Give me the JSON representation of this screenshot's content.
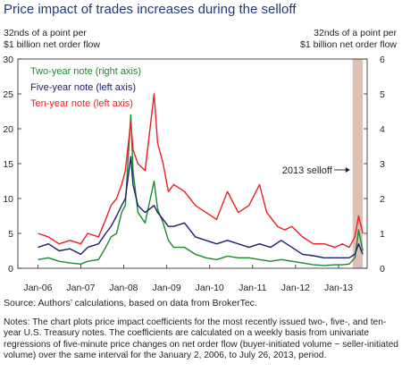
{
  "header": {
    "title": "Price impact of trades increases during the selloff",
    "left_unit": [
      "32nds of a point per",
      "$1 billion net order flow"
    ],
    "right_unit": [
      "32nds of a point per",
      "$1 billion net order flow"
    ]
  },
  "footer": {
    "source": "Source: Authors’ calculations, based on data from BrokerTec.",
    "notes": "Notes: The chart plots price impact coefficients for the most recently issued two-, five-, and ten-year U.S. Treasury notes. The coefficients are calculated on a weekly basis from univariate regressions of five-minute price changes on net order flow (buyer-initiated volume − seller-initiated volume) over the same interval for the January 2, 2006, to July 26, 2013, period."
  },
  "colors": {
    "two_year": "#1a8a2e",
    "five_year": "#1b1f6e",
    "ten_year": "#ee1c24",
    "shade": "#ddbfb4"
  },
  "chart_data": {
    "type": "line",
    "x_tick_labels": [
      "Jan-06",
      "Jan-07",
      "Jan-08",
      "Jan-09",
      "Jan-10",
      "Jan-11",
      "Jan-12",
      "Jan-13"
    ],
    "xlim": [
      "2005-07-15",
      "2013-09-01"
    ],
    "left_axis": {
      "ticks": [
        0,
        5,
        10,
        15,
        20,
        25,
        30
      ],
      "ylim": [
        0,
        30
      ]
    },
    "right_axis": {
      "ticks": [
        0,
        1,
        2,
        3,
        4,
        5,
        6
      ],
      "ylim": [
        0,
        6
      ]
    },
    "shaded_region": {
      "start": "2013-05-01",
      "end": "2013-07-26",
      "label": "2013 selloff"
    },
    "series": [
      {
        "name": "Two-year note (right axis)",
        "axis": "right",
        "color": "#1a8a2e",
        "points": [
          [
            "2006-01-02",
            0.25
          ],
          [
            "2006-04-01",
            0.3
          ],
          [
            "2006-07-01",
            0.2
          ],
          [
            "2006-10-01",
            0.15
          ],
          [
            "2007-01-01",
            0.12
          ],
          [
            "2007-03-01",
            0.2
          ],
          [
            "2007-06-01",
            0.25
          ],
          [
            "2007-08-01",
            0.6
          ],
          [
            "2007-09-15",
            0.9
          ],
          [
            "2007-11-01",
            1.0
          ],
          [
            "2007-12-15",
            1.6
          ],
          [
            "2008-01-15",
            1.8
          ],
          [
            "2008-03-01",
            4.4
          ],
          [
            "2008-03-20",
            2.8
          ],
          [
            "2008-05-01",
            1.6
          ],
          [
            "2008-07-01",
            1.3
          ],
          [
            "2008-09-15",
            2.5
          ],
          [
            "2008-10-15",
            1.7
          ],
          [
            "2008-12-01",
            1.3
          ],
          [
            "2009-01-15",
            0.8
          ],
          [
            "2009-03-01",
            0.6
          ],
          [
            "2009-06-01",
            0.6
          ],
          [
            "2009-09-01",
            0.4
          ],
          [
            "2009-12-01",
            0.3
          ],
          [
            "2010-03-01",
            0.25
          ],
          [
            "2010-06-01",
            0.35
          ],
          [
            "2010-09-01",
            0.3
          ],
          [
            "2010-12-01",
            0.3
          ],
          [
            "2011-03-01",
            0.25
          ],
          [
            "2011-06-01",
            0.2
          ],
          [
            "2011-09-01",
            0.25
          ],
          [
            "2011-12-01",
            0.2
          ],
          [
            "2012-03-01",
            0.15
          ],
          [
            "2012-06-01",
            0.1
          ],
          [
            "2012-09-01",
            0.08
          ],
          [
            "2012-12-01",
            0.1
          ],
          [
            "2013-02-01",
            0.1
          ],
          [
            "2013-04-01",
            0.12
          ],
          [
            "2013-05-20",
            0.3
          ],
          [
            "2013-06-20",
            1.1
          ],
          [
            "2013-07-26",
            0.5
          ]
        ]
      },
      {
        "name": "Five-year note (left axis)",
        "axis": "left",
        "color": "#1b1f6e",
        "points": [
          [
            "2006-01-02",
            3.0
          ],
          [
            "2006-04-01",
            3.5
          ],
          [
            "2006-07-01",
            2.5
          ],
          [
            "2006-10-01",
            2.8
          ],
          [
            "2007-01-01",
            2.0
          ],
          [
            "2007-03-01",
            3.0
          ],
          [
            "2007-06-01",
            3.5
          ],
          [
            "2007-08-01",
            5.0
          ],
          [
            "2007-09-15",
            6.0
          ],
          [
            "2007-11-01",
            7.5
          ],
          [
            "2007-12-15",
            9.0
          ],
          [
            "2008-01-15",
            10.0
          ],
          [
            "2008-03-01",
            16.0
          ],
          [
            "2008-03-20",
            12.0
          ],
          [
            "2008-05-01",
            9.0
          ],
          [
            "2008-07-01",
            8.0
          ],
          [
            "2008-09-15",
            9.0
          ],
          [
            "2008-10-15",
            8.0
          ],
          [
            "2008-12-01",
            7.0
          ],
          [
            "2009-01-15",
            6.0
          ],
          [
            "2009-03-01",
            6.0
          ],
          [
            "2009-06-01",
            6.5
          ],
          [
            "2009-09-01",
            4.5
          ],
          [
            "2009-12-01",
            4.0
          ],
          [
            "2010-03-01",
            3.5
          ],
          [
            "2010-06-01",
            4.0
          ],
          [
            "2010-09-01",
            3.5
          ],
          [
            "2010-12-01",
            3.0
          ],
          [
            "2011-03-01",
            3.5
          ],
          [
            "2011-06-01",
            3.0
          ],
          [
            "2011-09-01",
            4.0
          ],
          [
            "2011-12-01",
            3.0
          ],
          [
            "2012-03-01",
            2.0
          ],
          [
            "2012-06-01",
            1.8
          ],
          [
            "2012-09-01",
            1.5
          ],
          [
            "2012-12-01",
            1.5
          ],
          [
            "2013-02-01",
            1.5
          ],
          [
            "2013-04-01",
            1.5
          ],
          [
            "2013-05-20",
            2.0
          ],
          [
            "2013-06-20",
            3.5
          ],
          [
            "2013-07-26",
            2.0
          ]
        ]
      },
      {
        "name": "Ten-year note (left axis)",
        "axis": "left",
        "color": "#ee1c24",
        "points": [
          [
            "2006-01-02",
            5.0
          ],
          [
            "2006-04-01",
            4.5
          ],
          [
            "2006-07-01",
            3.5
          ],
          [
            "2006-10-01",
            4.0
          ],
          [
            "2007-01-01",
            3.5
          ],
          [
            "2007-03-01",
            5.0
          ],
          [
            "2007-06-01",
            4.5
          ],
          [
            "2007-08-01",
            7.0
          ],
          [
            "2007-09-15",
            9.0
          ],
          [
            "2007-11-01",
            10.0
          ],
          [
            "2007-12-15",
            12.0
          ],
          [
            "2008-01-15",
            14.0
          ],
          [
            "2008-03-01",
            21.0
          ],
          [
            "2008-03-20",
            17.0
          ],
          [
            "2008-05-01",
            15.0
          ],
          [
            "2008-07-01",
            14.0
          ],
          [
            "2008-09-15",
            25.0
          ],
          [
            "2008-10-15",
            18.0
          ],
          [
            "2008-12-01",
            15.0
          ],
          [
            "2009-01-15",
            11.0
          ],
          [
            "2009-03-01",
            12.0
          ],
          [
            "2009-06-01",
            11.0
          ],
          [
            "2009-09-01",
            9.0
          ],
          [
            "2009-12-01",
            8.0
          ],
          [
            "2010-03-01",
            7.0
          ],
          [
            "2010-06-01",
            11.0
          ],
          [
            "2010-09-01",
            8.0
          ],
          [
            "2010-12-01",
            9.0
          ],
          [
            "2011-03-01",
            12.0
          ],
          [
            "2011-05-01",
            8.0
          ],
          [
            "2011-08-01",
            6.0
          ],
          [
            "2011-10-01",
            5.5
          ],
          [
            "2011-12-01",
            6.0
          ],
          [
            "2012-03-01",
            4.5
          ],
          [
            "2012-06-01",
            3.5
          ],
          [
            "2012-09-01",
            3.5
          ],
          [
            "2012-12-01",
            3.0
          ],
          [
            "2013-02-01",
            3.5
          ],
          [
            "2013-04-01",
            3.0
          ],
          [
            "2013-05-20",
            4.5
          ],
          [
            "2013-06-20",
            7.5
          ],
          [
            "2013-07-26",
            5.0
          ]
        ]
      }
    ]
  }
}
